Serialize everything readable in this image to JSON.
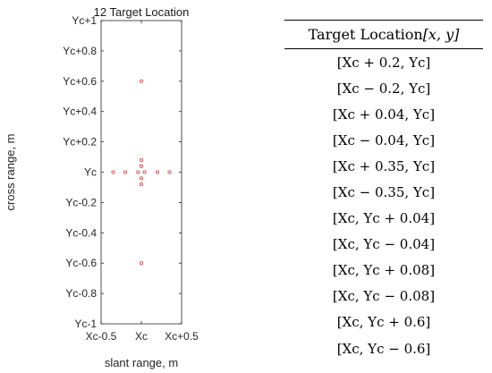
{
  "chart_data": {
    "type": "scatter",
    "title": "12 Target Location",
    "xlabel": "slant range, m",
    "ylabel": "cross range, m",
    "xlim": [
      -0.5,
      0.5
    ],
    "ylim": [
      -1,
      1
    ],
    "x_ticks": [
      {
        "value": -0.5,
        "label": "Xc-0.5"
      },
      {
        "value": 0,
        "label": "Xc"
      },
      {
        "value": 0.5,
        "label": "Xc+0.5"
      }
    ],
    "y_ticks": [
      {
        "value": 1,
        "label": "Yc+1"
      },
      {
        "value": 0.8,
        "label": "Yc+0.8"
      },
      {
        "value": 0.6,
        "label": "Yc+0.6"
      },
      {
        "value": 0.4,
        "label": "Yc+0.4"
      },
      {
        "value": 0.2,
        "label": "Yc+0.2"
      },
      {
        "value": 0,
        "label": "Yc"
      },
      {
        "value": -0.2,
        "label": "Yc-0.2"
      },
      {
        "value": -0.4,
        "label": "Yc-0.4"
      },
      {
        "value": -0.6,
        "label": "Yc-0.6"
      },
      {
        "value": -0.8,
        "label": "Yc-0.8"
      },
      {
        "value": -1,
        "label": "Yc-1"
      }
    ],
    "grid": false,
    "marker_color": "#d04a4a",
    "points": [
      {
        "x": 0.2,
        "y": 0
      },
      {
        "x": -0.2,
        "y": 0
      },
      {
        "x": 0.04,
        "y": 0
      },
      {
        "x": -0.04,
        "y": 0
      },
      {
        "x": 0.35,
        "y": 0
      },
      {
        "x": -0.35,
        "y": 0
      },
      {
        "x": 0,
        "y": 0.04
      },
      {
        "x": 0,
        "y": -0.04
      },
      {
        "x": 0,
        "y": 0.08
      },
      {
        "x": 0,
        "y": -0.08
      },
      {
        "x": 0,
        "y": 0.6
      },
      {
        "x": 0,
        "y": -0.6
      }
    ]
  },
  "table": {
    "header": {
      "label": "Target Location ",
      "math": "[x, y]"
    },
    "rows": [
      "[Xc + 0.2, Yc]",
      "[Xc − 0.2, Yc]",
      "[Xc + 0.04, Yc]",
      "[Xc − 0.04, Yc]",
      "[Xc + 0.35, Yc]",
      "[Xc − 0.35, Yc]",
      "[Xc, Yc + 0.04]",
      "[Xc, Yc − 0.04]",
      "[Xc, Yc + 0.08]",
      "[Xc, Yc − 0.08]",
      "[Xc, Yc + 0.6]",
      "[Xc, Yc − 0.6]"
    ]
  }
}
